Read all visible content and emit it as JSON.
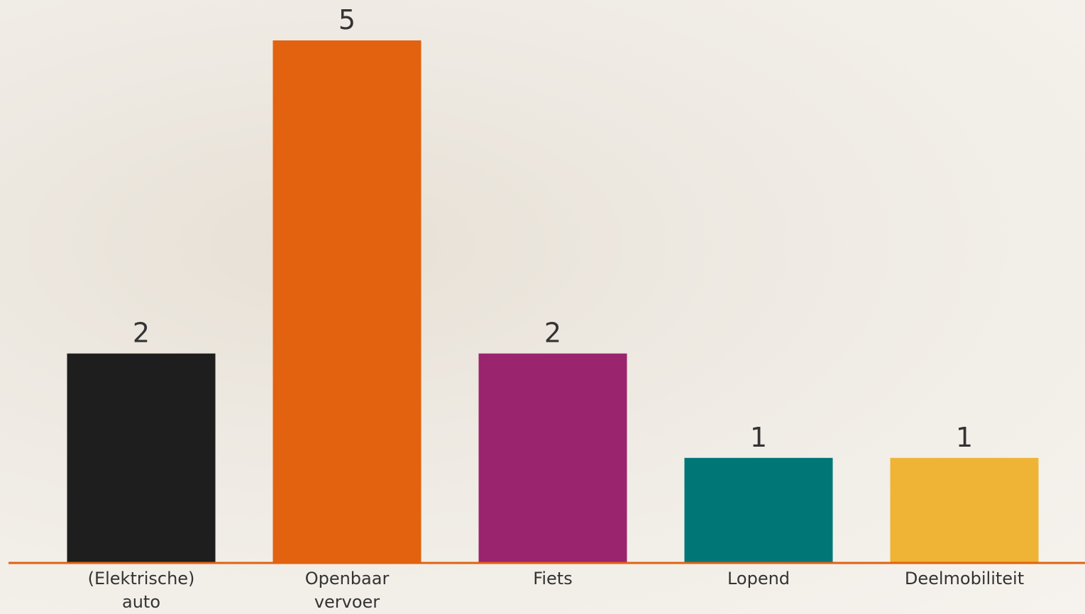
{
  "chart_data": {
    "type": "bar",
    "categories": [
      "(Elektrische) auto",
      "Openbaar vervoer",
      "Fiets",
      "Lopend",
      "Deelmobiliteit"
    ],
    "values": [
      2,
      5,
      2,
      1,
      1
    ],
    "colors": [
      "#1e1e1e",
      "#e26210",
      "#9b246e",
      "#007677",
      "#efb336"
    ],
    "ylim": [
      0,
      5
    ]
  }
}
